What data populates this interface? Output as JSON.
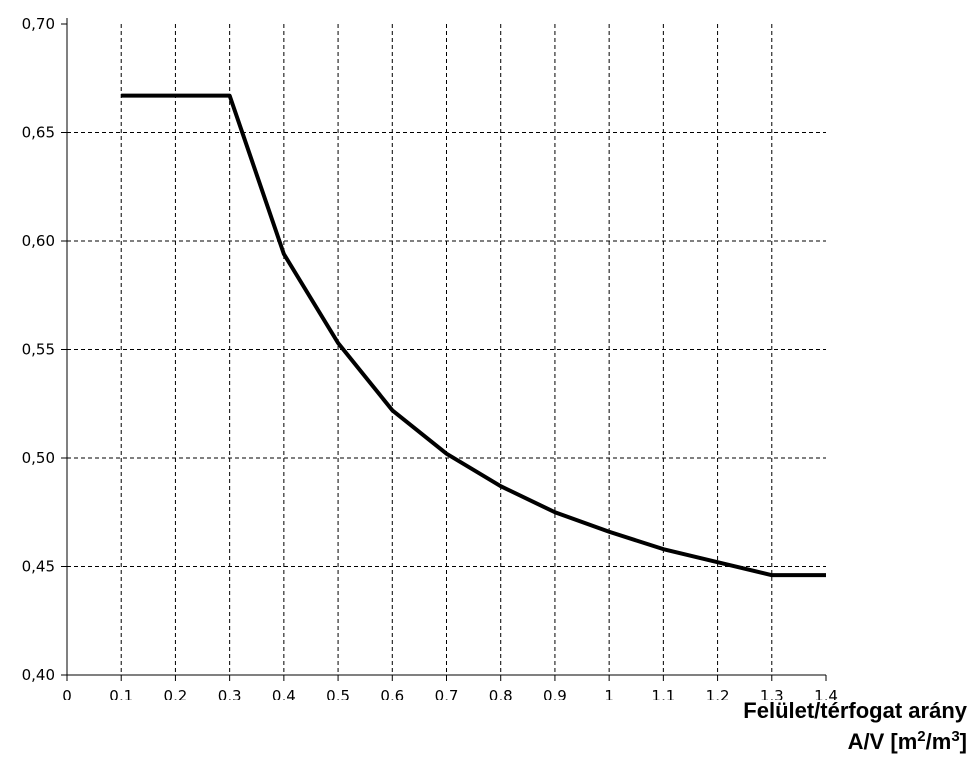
{
  "chart_data": {
    "type": "line",
    "title": "",
    "xlabel": "Felület/térfogat arány",
    "xlabel_line2_parts": [
      "A/V [m",
      "2",
      "/m",
      "3",
      "]"
    ],
    "ylabel": "",
    "xlim": [
      0,
      1.4
    ],
    "ylim": [
      0.4,
      0.7
    ],
    "grid": true,
    "x_tick_labels": [
      "0",
      "0,1",
      "0,2",
      "0,3",
      "0,4",
      "0,5",
      "0,6",
      "0,7",
      "0,8",
      "0,9",
      "1",
      "1,1",
      "1,2",
      "1,3",
      "1,4"
    ],
    "x_tick_values": [
      0,
      0.1,
      0.2,
      0.3,
      0.4,
      0.5,
      0.6,
      0.7,
      0.8,
      0.9,
      1.0,
      1.1,
      1.2,
      1.3,
      1.4
    ],
    "y_tick_labels": [
      "0,40",
      "0,45",
      "0,50",
      "0,55",
      "0,60",
      "0,65",
      "0,70"
    ],
    "y_tick_values": [
      0.4,
      0.45,
      0.5,
      0.55,
      0.6,
      0.65,
      0.7
    ],
    "series": [
      {
        "x": [
          0.1,
          0.2,
          0.3,
          0.4,
          0.5,
          0.6,
          0.7,
          0.8,
          0.9,
          1.0,
          1.1,
          1.2,
          1.3,
          1.4
        ],
        "y": [
          0.667,
          0.667,
          0.667,
          0.594,
          0.553,
          0.522,
          0.502,
          0.487,
          0.475,
          0.466,
          0.458,
          0.452,
          0.446,
          0.446
        ],
        "color": "#000000"
      }
    ]
  }
}
